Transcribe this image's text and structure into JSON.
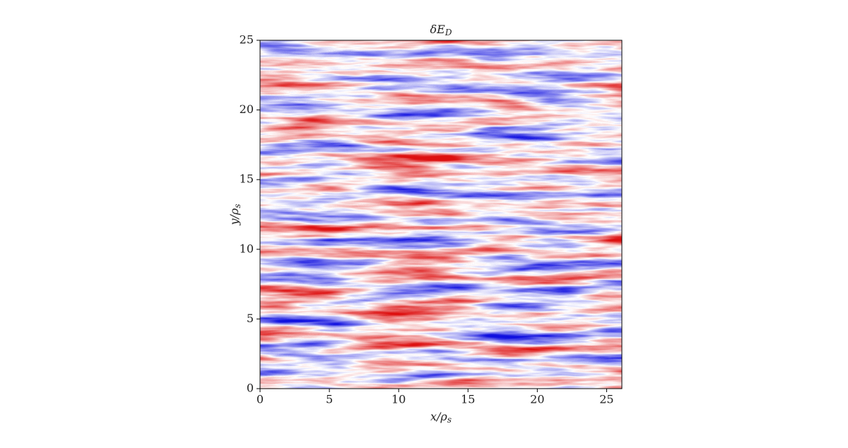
{
  "chart_data": {
    "type": "heatmap",
    "title": "δE",
    "title_subscript": "D",
    "xlabel": "x/ρ",
    "xlabel_subscript": "s",
    "ylabel": "y/ρ",
    "ylabel_subscript": "s",
    "xlim": [
      0,
      26.1
    ],
    "ylim": [
      0,
      25
    ],
    "xticks": [
      0,
      5,
      10,
      15,
      20,
      25
    ],
    "yticks": [
      0,
      5,
      10,
      15,
      20,
      25
    ],
    "colormap": [
      "#1010e0",
      "#ffffff",
      "#dd1010"
    ]
  }
}
